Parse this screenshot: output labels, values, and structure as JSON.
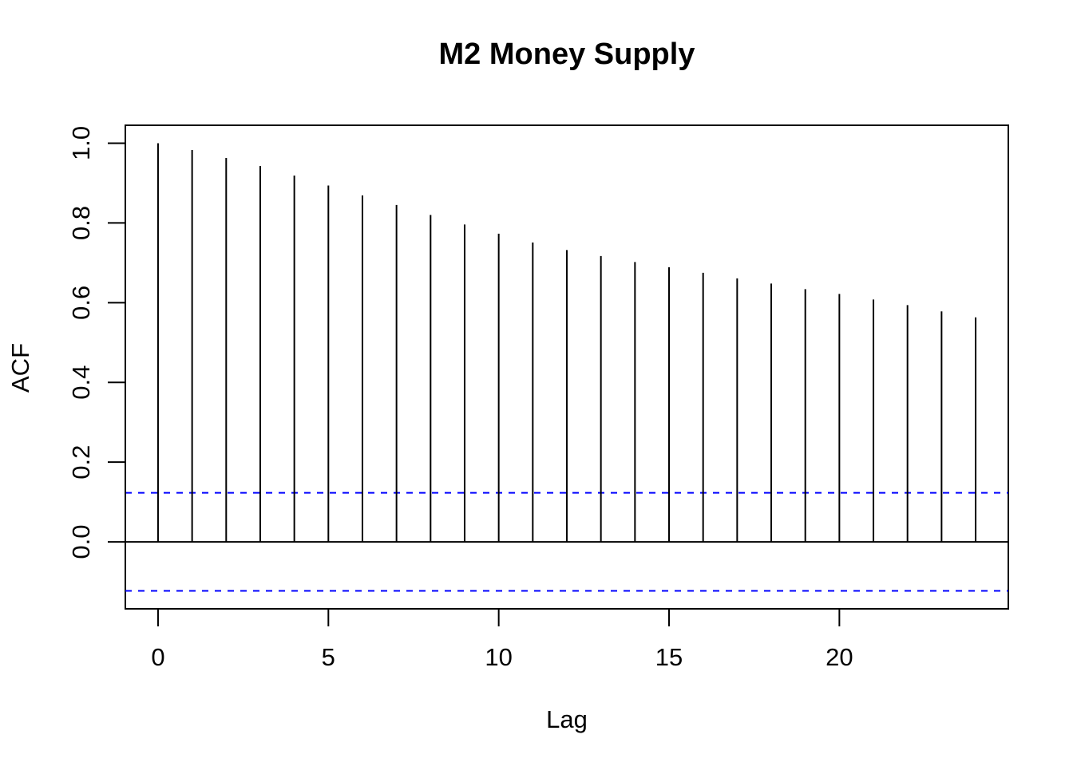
{
  "chart_data": {
    "type": "bar",
    "title": "M2 Money Supply",
    "xlabel": "Lag",
    "ylabel": "ACF",
    "x": [
      0,
      1,
      2,
      3,
      4,
      5,
      6,
      7,
      8,
      9,
      10,
      11,
      12,
      13,
      14,
      15,
      16,
      17,
      18,
      19,
      20,
      21,
      22,
      23,
      24
    ],
    "values": [
      1.0,
      0.983,
      0.963,
      0.943,
      0.919,
      0.894,
      0.869,
      0.845,
      0.82,
      0.796,
      0.773,
      0.751,
      0.732,
      0.717,
      0.702,
      0.689,
      0.675,
      0.661,
      0.648,
      0.634,
      0.622,
      0.608,
      0.594,
      0.578,
      0.563
    ],
    "confidence_bound": 0.123,
    "xlim": [
      -0.96,
      24.96
    ],
    "ylim": [
      -0.168,
      1.045
    ],
    "xticks": [
      0,
      5,
      10,
      15,
      20
    ],
    "xtick_labels": [
      "0",
      "5",
      "10",
      "15",
      "20"
    ],
    "yticks": [
      0.0,
      0.2,
      0.4,
      0.6,
      0.8,
      1.0
    ],
    "ytick_labels": [
      "0.0",
      "0.2",
      "0.4",
      "0.6",
      "0.8",
      "1.0"
    ],
    "grid": false,
    "colors": {
      "spikes": "#000000",
      "confidence": "#0000ff",
      "axes": "#000000"
    }
  }
}
